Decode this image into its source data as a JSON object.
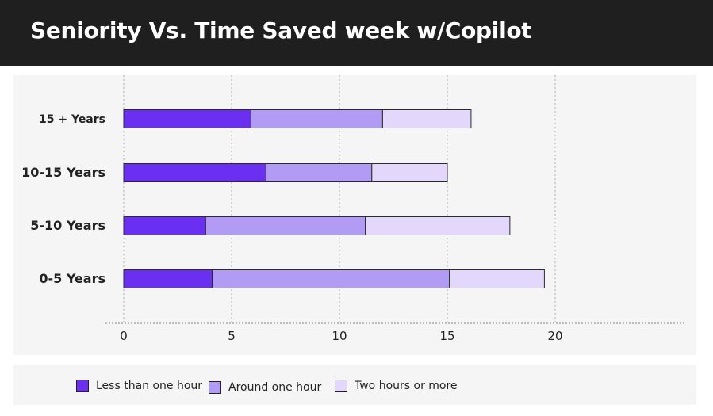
{
  "header": {
    "title": "Seniority Vs. Time Saved week w/Copilot"
  },
  "colors": {
    "header_bg": "#1f1f1f",
    "panel_bg": "#f5f5f5",
    "series": [
      "#6a2ff0",
      "#b19bf5",
      "#e3d8fc"
    ],
    "bar_stroke": "#2a2a2a",
    "grid": "#b0b0b0"
  },
  "chart_data": {
    "type": "bar",
    "orientation": "horizontal",
    "stacked": true,
    "title": "Seniority Vs. Time Saved week w/Copilot",
    "xlabel": "",
    "ylabel": "",
    "categories": [
      "15 + Years",
      "10-15 Years",
      "5-10 Years",
      "0-5 Years"
    ],
    "series": [
      {
        "name": "Less than one hour",
        "values": [
          5.9,
          6.6,
          3.8,
          4.1
        ]
      },
      {
        "name": "Around one hour",
        "values": [
          6.1,
          4.9,
          7.4,
          11.0
        ]
      },
      {
        "name": "Two hours or more",
        "values": [
          4.1,
          3.5,
          6.7,
          4.4
        ]
      }
    ],
    "xlim": [
      0,
      26
    ],
    "xticks": [
      0,
      5,
      10,
      15,
      20
    ],
    "xtick_labels": [
      "0",
      "5",
      "10",
      "15",
      "20"
    ],
    "grid": "vertical-dashed",
    "legend_position": "bottom"
  }
}
